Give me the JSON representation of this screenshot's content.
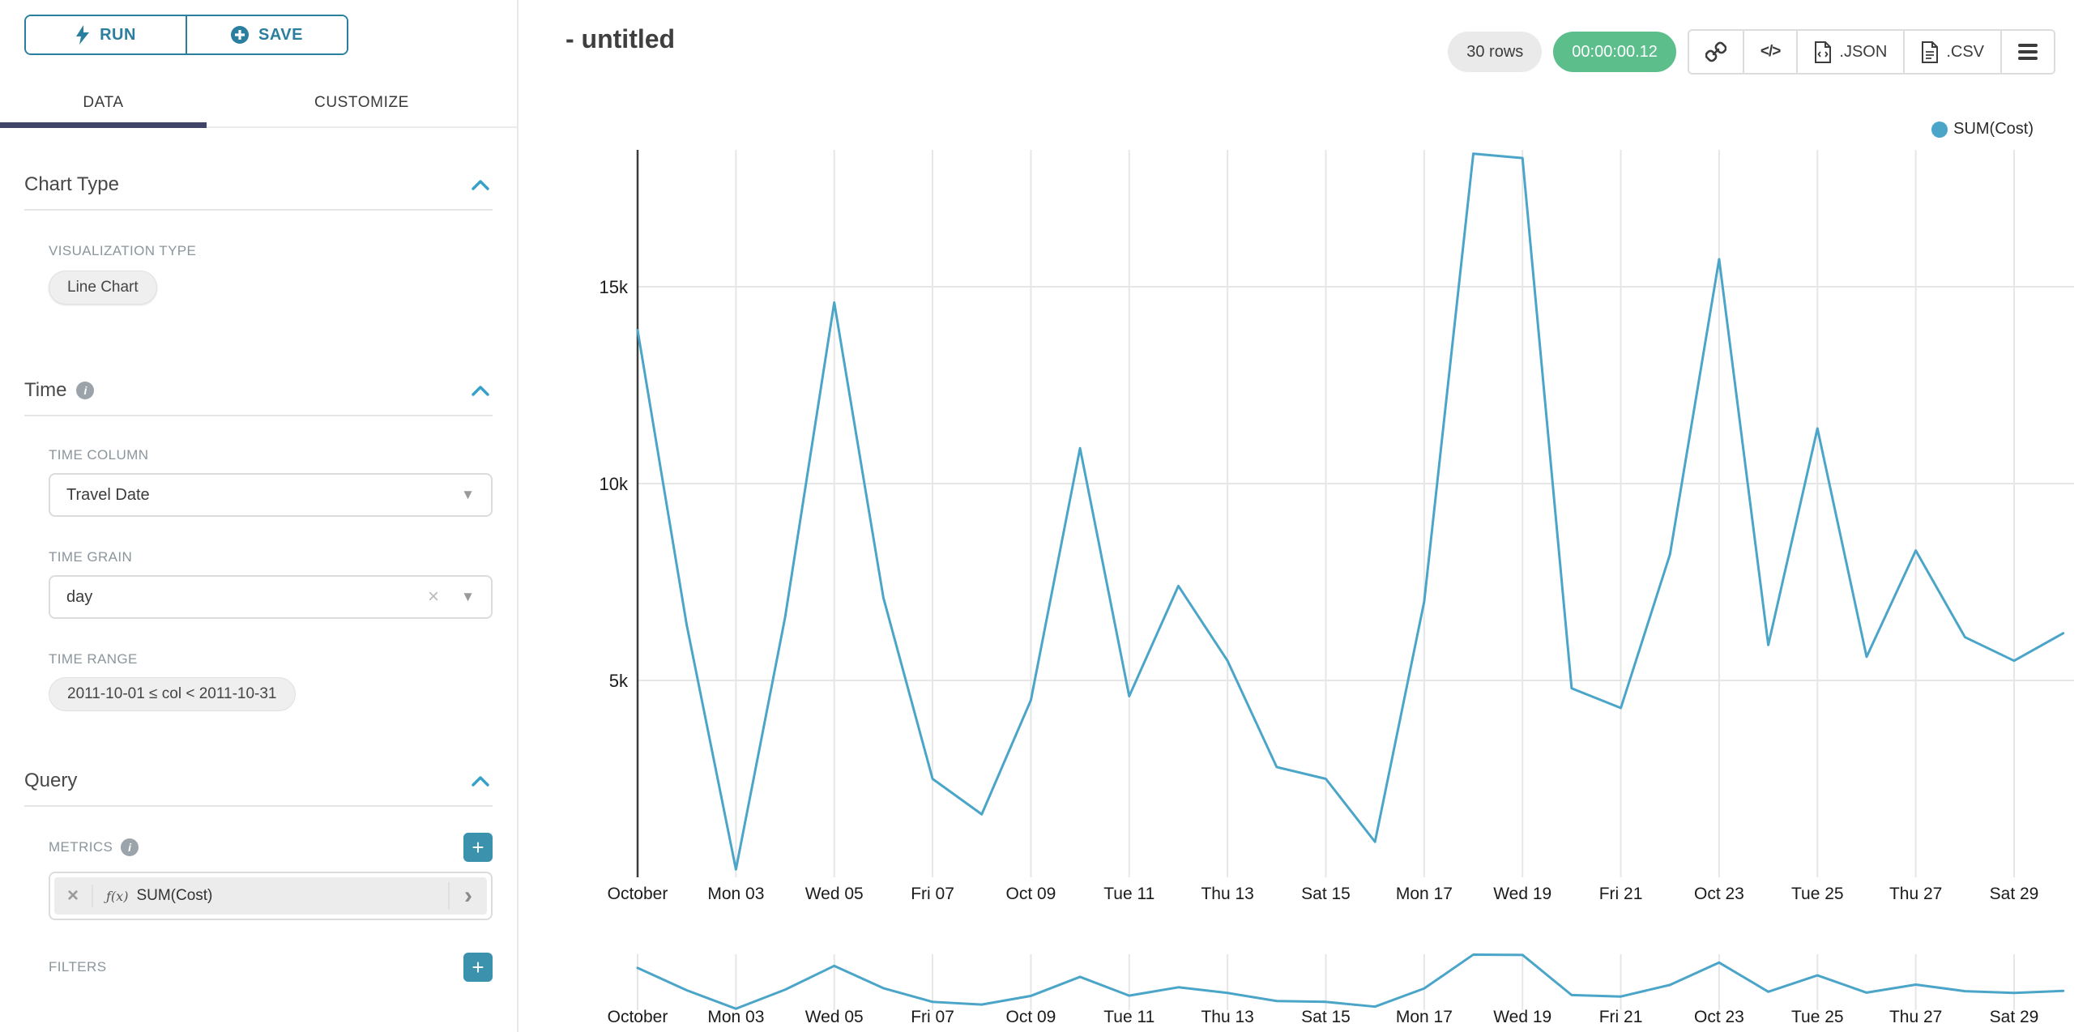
{
  "sidebar": {
    "run_label": "RUN",
    "save_label": "SAVE",
    "tabs": {
      "data": "DATA",
      "customize": "CUSTOMIZE"
    },
    "chart_type": {
      "title": "Chart Type",
      "viz_type_label": "VISUALIZATION TYPE",
      "viz_type_value": "Line Chart"
    },
    "time": {
      "title": "Time",
      "column_label": "TIME COLUMN",
      "column_value": "Travel Date",
      "grain_label": "TIME GRAIN",
      "grain_value": "day",
      "range_label": "TIME RANGE",
      "range_value": "2011-10-01 ≤ col < 2011-10-31"
    },
    "query": {
      "title": "Query",
      "metrics_label": "METRICS",
      "metric": {
        "fx": "ƒ(x)",
        "name": "SUM(Cost)"
      },
      "filters_label": "FILTERS"
    }
  },
  "header": {
    "title": "- untitled",
    "row_count": "30 rows",
    "timer": "00:00:00.12",
    "export_json": ".JSON",
    "export_csv": ".CSV"
  },
  "legend": {
    "series": "SUM(Cost)"
  },
  "icons": {
    "plus_glyph": "+",
    "close_glyph": "×",
    "caret_glyph": "▼",
    "chevron_right_glyph": "›",
    "code_glyph": "</>",
    "info_glyph": "i"
  },
  "colors": {
    "accent_teal": "#2a7e9e",
    "bright_teal": "#35a0c8",
    "plus_button": "#3a92ad",
    "series_line": "#4aa5c8",
    "success_green": "#5bbe8b",
    "tab_indicator": "#3f4468",
    "gridline": "#e6e6e6",
    "axis_text": "#1b1b1b"
  },
  "chart_data": {
    "type": "line",
    "title": "- untitled",
    "xlabel": "",
    "ylabel": "",
    "x": [
      "2011-10-01",
      "2011-10-02",
      "2011-10-03",
      "2011-10-04",
      "2011-10-05",
      "2011-10-06",
      "2011-10-07",
      "2011-10-08",
      "2011-10-09",
      "2011-10-10",
      "2011-10-11",
      "2011-10-12",
      "2011-10-13",
      "2011-10-14",
      "2011-10-15",
      "2011-10-16",
      "2011-10-17",
      "2011-10-18",
      "2011-10-19",
      "2011-10-20",
      "2011-10-21",
      "2011-10-22",
      "2011-10-23",
      "2011-10-24",
      "2011-10-25",
      "2011-10-26",
      "2011-10-27",
      "2011-10-28",
      "2011-10-29",
      "2011-10-30"
    ],
    "series": [
      {
        "name": "SUM(Cost)",
        "values": [
          13900,
          6400,
          200,
          6600,
          14600,
          7100,
          2500,
          1600,
          4500,
          10900,
          4600,
          7400,
          5500,
          2800,
          2500,
          900,
          7000,
          18380,
          18270,
          4800,
          4300,
          8200,
          15700,
          5900,
          11400,
          5600,
          8300,
          6100,
          5500,
          6200
        ]
      }
    ],
    "x_tick_labels": [
      "October",
      "Mon 03",
      "Wed 05",
      "Fri 07",
      "Oct 09",
      "Tue 11",
      "Thu 13",
      "Sat 15",
      "Mon 17",
      "Wed 19",
      "Fri 21",
      "Oct 23",
      "Tue 25",
      "Thu 27",
      "Sat 29"
    ],
    "x_tick_days": [
      1,
      3,
      5,
      7,
      9,
      11,
      13,
      15,
      17,
      19,
      21,
      23,
      25,
      27,
      29
    ],
    "y_ticks": [
      {
        "label": "5k",
        "value": 5000
      },
      {
        "label": "10k",
        "value": 10000
      },
      {
        "label": "15k",
        "value": 15000
      }
    ],
    "ylim": [
      0,
      18500
    ],
    "grid": true,
    "legend_position": "top-right",
    "context_chart": "same series repeated as small range-selector strip below main chart with identical x tick labels"
  }
}
